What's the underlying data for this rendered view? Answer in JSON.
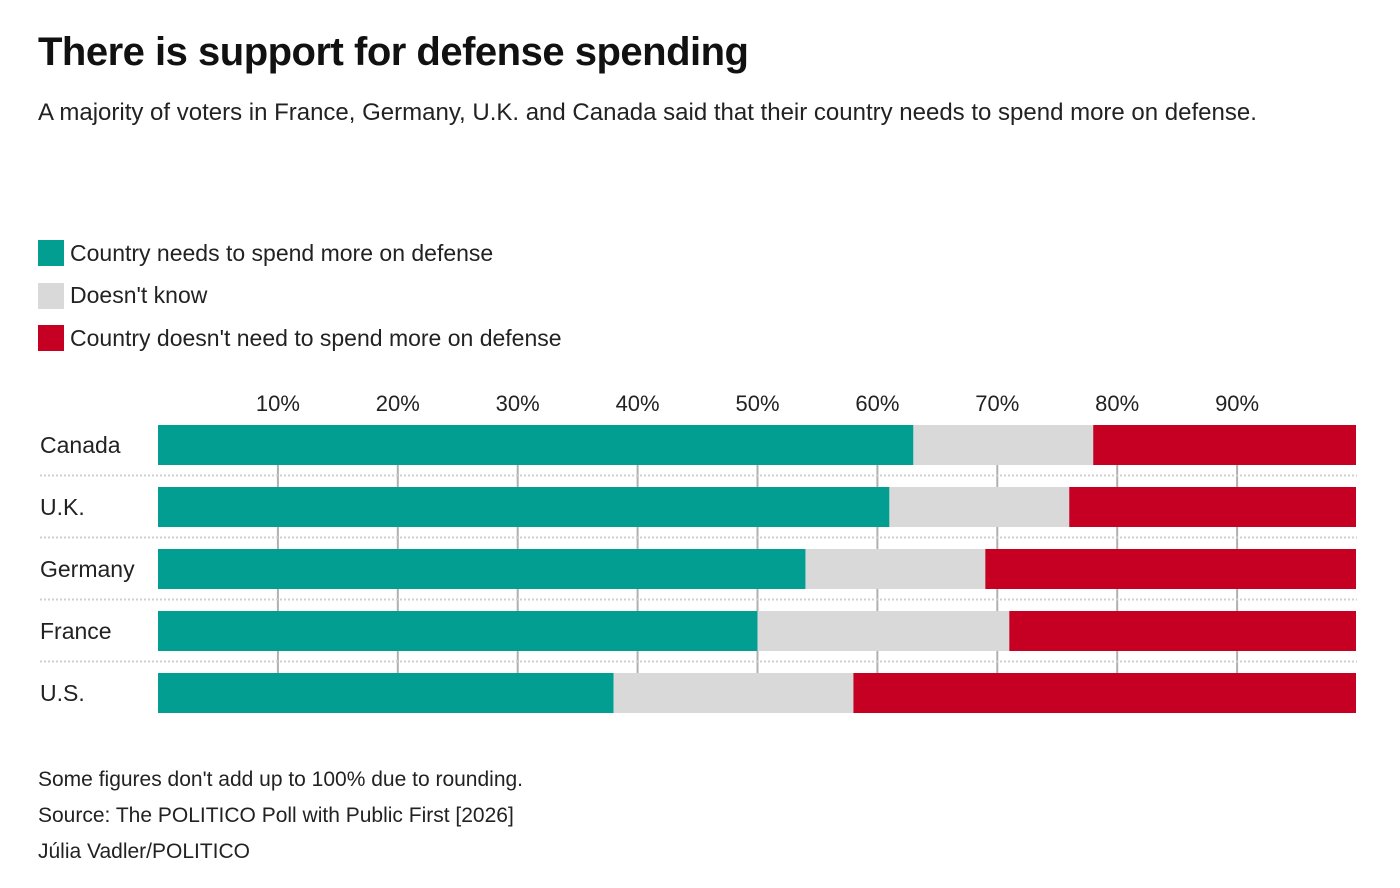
{
  "title": "There is support for defense spending",
  "subtitle": "A majority of voters in France, Germany, U.K. and Canada said that their country needs to spend more on defense.",
  "colors": {
    "more": "#029e92",
    "dk": "#d9d9d9",
    "no": "#c50022"
  },
  "legend": [
    "Country needs to spend more on defense",
    "Doesn't know",
    "Country doesn't need to spend more on defense"
  ],
  "notes": [
    "Some figures don't add up to 100% due to rounding.",
    "Source: The POLITICO Poll with Public First [2026]",
    "Júlia Vadler/POLITICO"
  ],
  "chart_data": {
    "type": "bar",
    "orientation": "horizontal",
    "stacked": true,
    "categories": [
      "Canada",
      "U.K.",
      "Germany",
      "France",
      "U.S."
    ],
    "series": [
      {
        "name": "Country needs to spend more on defense",
        "values": [
          63,
          61,
          54,
          50,
          38
        ]
      },
      {
        "name": "Doesn't know",
        "values": [
          15,
          15,
          15,
          21,
          20
        ]
      },
      {
        "name": "Country doesn't need to spend more on defense",
        "values": [
          22,
          24,
          31,
          29,
          42
        ]
      }
    ],
    "xlim": [
      0,
      100
    ],
    "ticks": [
      "10%",
      "20%",
      "30%",
      "40%",
      "50%",
      "60%",
      "70%",
      "80%",
      "90%"
    ],
    "tick_values": [
      10,
      20,
      30,
      40,
      50,
      60,
      70,
      80,
      90
    ],
    "legend_placement": "top-left"
  }
}
